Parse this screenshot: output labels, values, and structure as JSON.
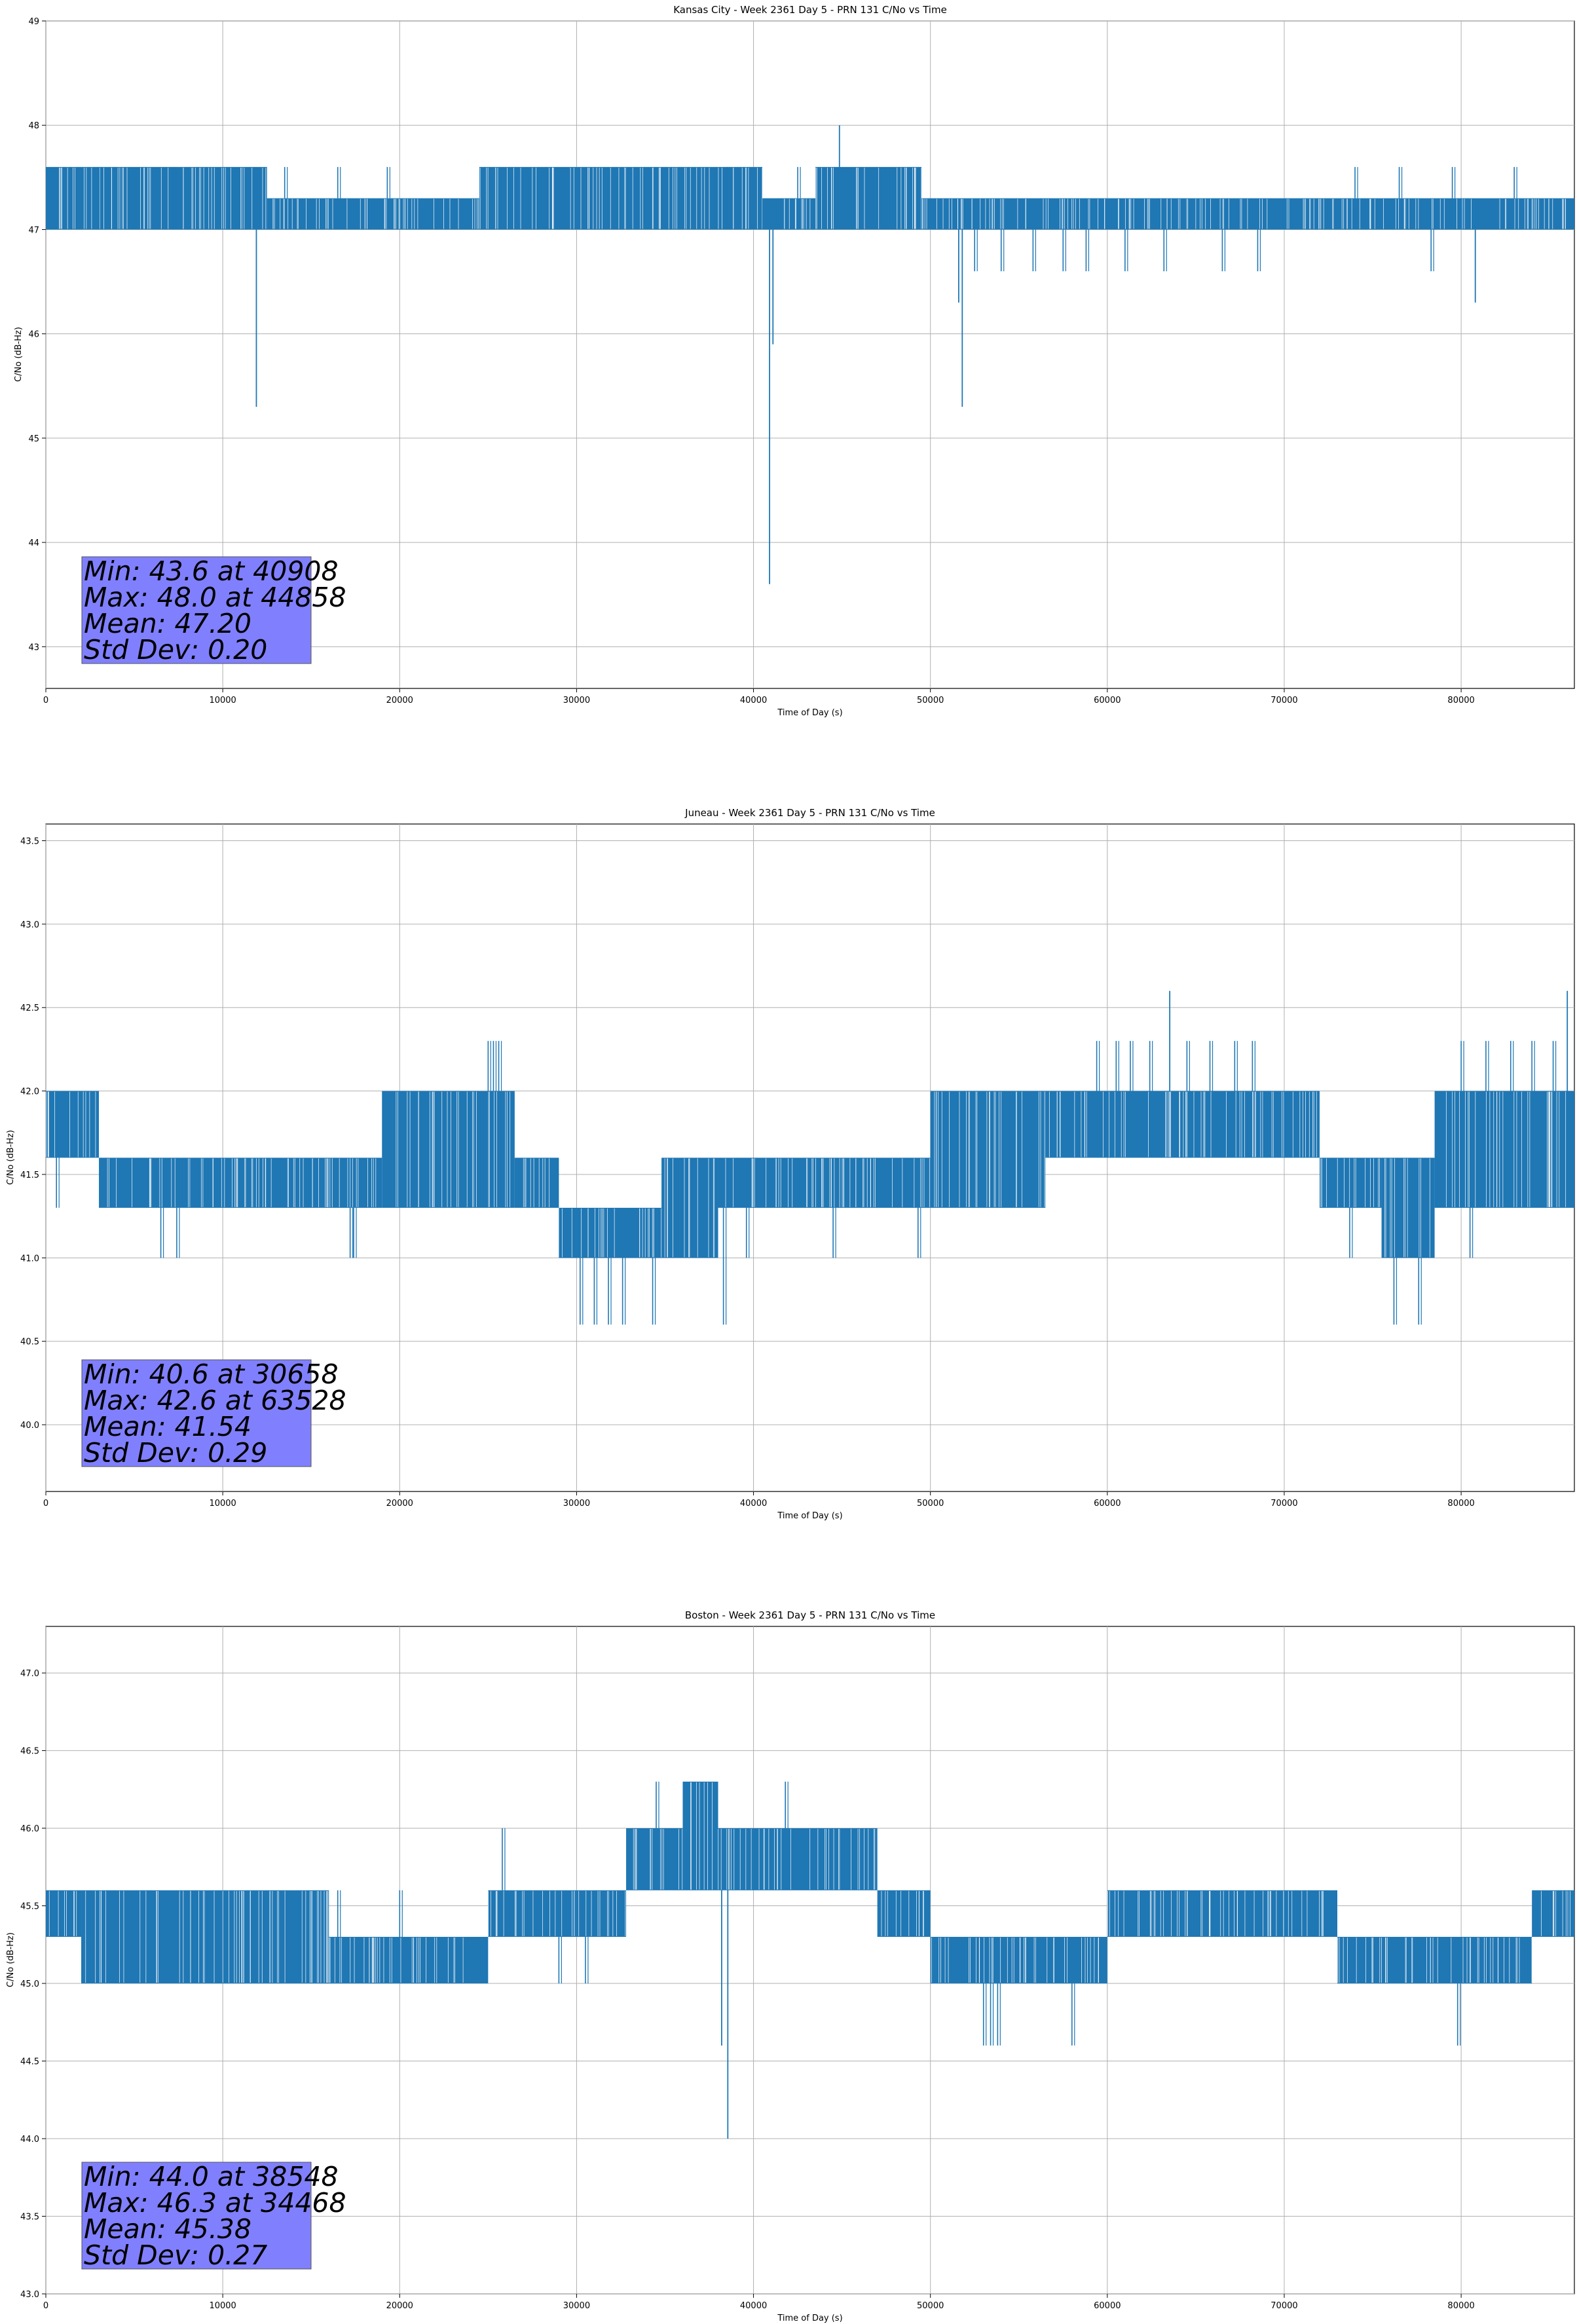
{
  "chart_data": [
    {
      "type": "line",
      "title": "Kansas City - Week 2361 Day 5 - PRN 131 C/No vs Time",
      "xlabel": "Time of Day (s)",
      "ylabel": "C/No (dB-Hz)",
      "xlim": [
        0,
        86400
      ],
      "ylim": [
        42.6,
        49.0
      ],
      "xticks": [
        0,
        10000,
        20000,
        30000,
        40000,
        50000,
        60000,
        70000,
        80000
      ],
      "xticklabels": [
        "0",
        "10000",
        "20000",
        "30000",
        "40000",
        "50000",
        "60000",
        "70000",
        "80000"
      ],
      "yticks": [
        43,
        44,
        45,
        46,
        47,
        48,
        49
      ],
      "yticklabels": [
        "43",
        "44",
        "45",
        "46",
        "47",
        "48",
        "49"
      ],
      "grid": true,
      "line_color": "#1f77b4",
      "series": [
        {
          "name": "C/No",
          "segments": [
            {
              "x0": 0,
              "x1": 12500,
              "lo": 47.0,
              "hi": 47.6
            },
            {
              "x0": 12500,
              "x1": 24500,
              "lo": 47.0,
              "hi": 47.3
            },
            {
              "x0": 24500,
              "x1": 40500,
              "lo": 47.0,
              "hi": 47.6
            },
            {
              "x0": 40500,
              "x1": 43500,
              "lo": 47.0,
              "hi": 47.3
            },
            {
              "x0": 43500,
              "x1": 49500,
              "lo": 47.0,
              "hi": 47.6
            },
            {
              "x0": 49500,
              "x1": 86400,
              "lo": 47.0,
              "hi": 47.3
            }
          ],
          "outliers": [
            {
              "x": 3000,
              "y": 47.6
            },
            {
              "x": 7200,
              "y": 47.6
            },
            {
              "x": 13500,
              "y": 47.6
            },
            {
              "x": 16500,
              "y": 47.6
            },
            {
              "x": 19300,
              "y": 47.6
            },
            {
              "x": 38500,
              "y": 47.6
            },
            {
              "x": 42500,
              "y": 47.6
            },
            {
              "x": 54000,
              "y": 46.6
            },
            {
              "x": 55800,
              "y": 46.6
            },
            {
              "x": 57500,
              "y": 46.6
            },
            {
              "x": 61000,
              "y": 46.6
            },
            {
              "x": 63200,
              "y": 46.6
            },
            {
              "x": 68500,
              "y": 46.6
            },
            {
              "x": 74000,
              "y": 47.6
            },
            {
              "x": 76500,
              "y": 47.6
            },
            {
              "x": 78300,
              "y": 46.6
            },
            {
              "x": 79500,
              "y": 47.6
            },
            {
              "x": 83000,
              "y": 47.6
            },
            {
              "x": 52500,
              "y": 46.6
            },
            {
              "x": 58800,
              "y": 46.6
            },
            {
              "x": 66500,
              "y": 46.6
            }
          ],
          "spikes": [
            {
              "x": 11900,
              "y": 45.3
            },
            {
              "x": 40908,
              "y": 43.6
            },
            {
              "x": 41100,
              "y": 45.9
            },
            {
              "x": 44858,
              "y": 48.0
            },
            {
              "x": 51600,
              "y": 46.3
            },
            {
              "x": 51800,
              "y": 45.3
            },
            {
              "x": 80800,
              "y": 46.3
            }
          ]
        }
      ],
      "annotation": {
        "lines": [
          "Min: 43.6 at 40908",
          "Max: 48.0 at 44858",
          "Mean: 47.20",
          "Std Dev: 0.20"
        ],
        "color": "#8080ff"
      }
    },
    {
      "type": "line",
      "title": "Juneau - Week 2361 Day 5 - PRN 131 C/No vs Time",
      "xlabel": "Time of Day (s)",
      "ylabel": "C/No (dB-Hz)",
      "xlim": [
        0,
        86400
      ],
      "ylim": [
        39.6,
        43.6
      ],
      "xticks": [
        0,
        10000,
        20000,
        30000,
        40000,
        50000,
        60000,
        70000,
        80000
      ],
      "xticklabels": [
        "0",
        "10000",
        "20000",
        "30000",
        "40000",
        "50000",
        "60000",
        "70000",
        "80000"
      ],
      "yticks": [
        40.0,
        40.5,
        41.0,
        41.5,
        42.0,
        42.5,
        43.0,
        43.5
      ],
      "yticklabels": [
        "40.0",
        "40.5",
        "41.0",
        "41.5",
        "42.0",
        "42.5",
        "43.0",
        "43.5"
      ],
      "grid": true,
      "line_color": "#1f77b4",
      "series": [
        {
          "name": "C/No",
          "segments": [
            {
              "x0": 0,
              "x1": 3000,
              "lo": 41.6,
              "hi": 42.0
            },
            {
              "x0": 3000,
              "x1": 19000,
              "lo": 41.3,
              "hi": 41.6
            },
            {
              "x0": 19000,
              "x1": 26500,
              "lo": 41.3,
              "hi": 42.0
            },
            {
              "x0": 26500,
              "x1": 29000,
              "lo": 41.3,
              "hi": 41.6
            },
            {
              "x0": 29000,
              "x1": 34800,
              "lo": 41.0,
              "hi": 41.3
            },
            {
              "x0": 34800,
              "x1": 38000,
              "lo": 41.0,
              "hi": 41.6
            },
            {
              "x0": 38000,
              "x1": 50000,
              "lo": 41.3,
              "hi": 41.6
            },
            {
              "x0": 50000,
              "x1": 56500,
              "lo": 41.3,
              "hi": 42.0
            },
            {
              "x0": 56500,
              "x1": 72000,
              "lo": 41.6,
              "hi": 42.0
            },
            {
              "x0": 72000,
              "x1": 75500,
              "lo": 41.3,
              "hi": 41.6
            },
            {
              "x0": 75500,
              "x1": 78500,
              "lo": 41.0,
              "hi": 41.6
            },
            {
              "x0": 78500,
              "x1": 86400,
              "lo": 41.3,
              "hi": 42.0
            }
          ],
          "outliers": [
            {
              "x": 600,
              "y": 41.3
            },
            {
              "x": 6500,
              "y": 41.0
            },
            {
              "x": 7400,
              "y": 41.0
            },
            {
              "x": 17200,
              "y": 41.0
            },
            {
              "x": 17400,
              "y": 41.0
            },
            {
              "x": 25000,
              "y": 42.3
            },
            {
              "x": 25300,
              "y": 42.3
            },
            {
              "x": 25600,
              "y": 42.3
            },
            {
              "x": 30200,
              "y": 40.6
            },
            {
              "x": 31000,
              "y": 40.6
            },
            {
              "x": 31800,
              "y": 40.6
            },
            {
              "x": 32600,
              "y": 40.6
            },
            {
              "x": 34300,
              "y": 40.6
            },
            {
              "x": 38300,
              "y": 40.6
            },
            {
              "x": 39600,
              "y": 41.0
            },
            {
              "x": 44500,
              "y": 41.0
            },
            {
              "x": 49300,
              "y": 41.0
            },
            {
              "x": 59400,
              "y": 42.3
            },
            {
              "x": 60500,
              "y": 42.3
            },
            {
              "x": 61300,
              "y": 42.3
            },
            {
              "x": 62400,
              "y": 42.3
            },
            {
              "x": 64500,
              "y": 42.3
            },
            {
              "x": 65800,
              "y": 42.3
            },
            {
              "x": 67200,
              "y": 42.3
            },
            {
              "x": 68200,
              "y": 42.3
            },
            {
              "x": 76200,
              "y": 40.6
            },
            {
              "x": 77600,
              "y": 40.6
            },
            {
              "x": 80000,
              "y": 42.3
            },
            {
              "x": 81400,
              "y": 42.3
            },
            {
              "x": 82800,
              "y": 42.3
            },
            {
              "x": 84000,
              "y": 42.3
            },
            {
              "x": 85200,
              "y": 42.3
            },
            {
              "x": 73700,
              "y": 41.0
            },
            {
              "x": 80500,
              "y": 41.0
            }
          ],
          "spikes": [
            {
              "x": 63528,
              "y": 42.6
            },
            {
              "x": 86000,
              "y": 42.6
            }
          ]
        }
      ],
      "annotation": {
        "lines": [
          "Min: 40.6 at 30658",
          "Max: 42.6 at 63528",
          "Mean: 41.54",
          "Std Dev: 0.29"
        ],
        "color": "#8080ff"
      }
    },
    {
      "type": "line",
      "title": "Boston - Week 2361 Day 5 - PRN 131 C/No vs Time",
      "xlabel": "Time of Day (s)",
      "ylabel": "C/No (dB-Hz)",
      "xlim": [
        0,
        86400
      ],
      "ylim": [
        43.0,
        47.3
      ],
      "xticks": [
        0,
        10000,
        20000,
        30000,
        40000,
        50000,
        60000,
        70000,
        80000
      ],
      "xticklabels": [
        "0",
        "10000",
        "20000",
        "30000",
        "40000",
        "50000",
        "60000",
        "70000",
        "80000"
      ],
      "yticks": [
        43.0,
        43.5,
        44.0,
        44.5,
        45.0,
        45.5,
        46.0,
        46.5,
        47.0
      ],
      "yticklabels": [
        "43.0",
        "43.5",
        "44.0",
        "44.5",
        "45.0",
        "45.5",
        "46.0",
        "46.5",
        "47.0"
      ],
      "grid": true,
      "line_color": "#1f77b4",
      "series": [
        {
          "name": "C/No",
          "segments": [
            {
              "x0": 0,
              "x1": 2000,
              "lo": 45.3,
              "hi": 45.6
            },
            {
              "x0": 2000,
              "x1": 16000,
              "lo": 45.0,
              "hi": 45.6
            },
            {
              "x0": 16000,
              "x1": 25000,
              "lo": 45.0,
              "hi": 45.3
            },
            {
              "x0": 25000,
              "x1": 30000,
              "lo": 45.3,
              "hi": 45.6
            },
            {
              "x0": 30000,
              "x1": 32800,
              "lo": 45.3,
              "hi": 45.6
            },
            {
              "x0": 32800,
              "x1": 36000,
              "lo": 45.6,
              "hi": 46.0
            },
            {
              "x0": 36000,
              "x1": 38000,
              "lo": 45.6,
              "hi": 46.3
            },
            {
              "x0": 38000,
              "x1": 47000,
              "lo": 45.6,
              "hi": 46.0
            },
            {
              "x0": 47000,
              "x1": 50000,
              "lo": 45.3,
              "hi": 45.6
            },
            {
              "x0": 50000,
              "x1": 60000,
              "lo": 45.0,
              "hi": 45.3
            },
            {
              "x0": 60000,
              "x1": 73000,
              "lo": 45.3,
              "hi": 45.6
            },
            {
              "x0": 73000,
              "x1": 84000,
              "lo": 45.0,
              "hi": 45.3
            },
            {
              "x0": 84000,
              "x1": 86400,
              "lo": 45.3,
              "hi": 45.6
            }
          ],
          "outliers": [
            {
              "x": 25800,
              "y": 46.0
            },
            {
              "x": 29000,
              "y": 45.0
            },
            {
              "x": 34500,
              "y": 46.3
            },
            {
              "x": 41800,
              "y": 46.3
            },
            {
              "x": 46000,
              "y": 45.6
            },
            {
              "x": 53000,
              "y": 44.6
            },
            {
              "x": 53400,
              "y": 44.6
            },
            {
              "x": 53800,
              "y": 44.6
            },
            {
              "x": 58000,
              "y": 44.6
            },
            {
              "x": 79800,
              "y": 44.6
            },
            {
              "x": 16500,
              "y": 45.6
            },
            {
              "x": 20000,
              "y": 45.6
            },
            {
              "x": 30500,
              "y": 45.0
            }
          ],
          "spikes": [
            {
              "x": 38548,
              "y": 44.0
            },
            {
              "x": 38200,
              "y": 44.6
            }
          ]
        }
      ],
      "annotation": {
        "lines": [
          "Min: 44.0 at 38548",
          "Max: 46.3 at 34468",
          "Mean: 45.38",
          "Std Dev: 0.27"
        ],
        "color": "#8080ff"
      }
    }
  ]
}
